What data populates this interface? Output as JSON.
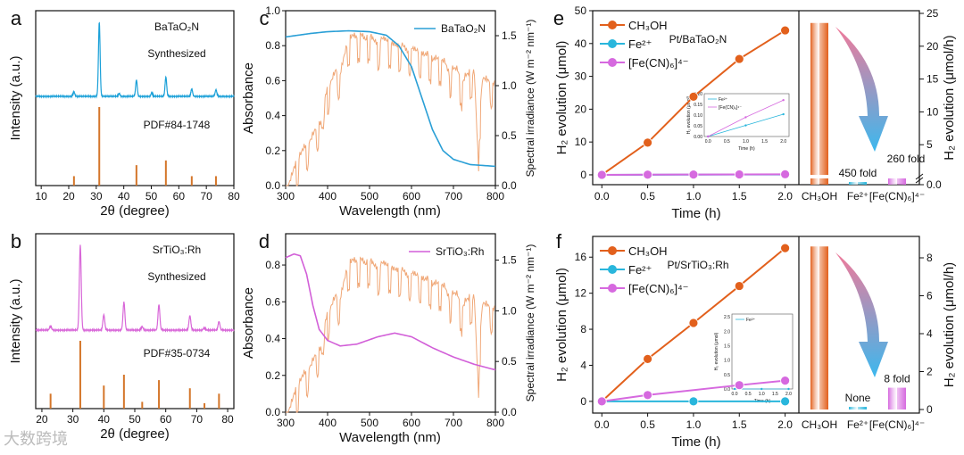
{
  "panel_labels": [
    "a",
    "b",
    "c",
    "d",
    "e",
    "f"
  ],
  "watermark": "大数跨境",
  "colors": {
    "xrd_blue": "#1aa0d8",
    "xrd_pink": "#d867d8",
    "stick": "#d4762a",
    "abs_blue": "#2a9fd6",
    "abs_pink": "#d25fd8",
    "solar": "#f0a878",
    "ch3oh": "#e2601c",
    "fe": "#29b6dc",
    "fecn": "#d669df"
  },
  "chart_data": [
    {
      "id": "a",
      "type": "line",
      "xlabel": "2θ (degree)",
      "ylabel": "Intensity (a.u.)",
      "xlim": [
        8,
        80
      ],
      "xticks": [
        "10",
        "20",
        "30",
        "40",
        "50",
        "60",
        "70",
        "80"
      ],
      "annotations": [
        "BaTaO₂N",
        "Synthesized",
        "PDF#84-1748"
      ],
      "peaks": [
        [
          21.9,
          0.06
        ],
        [
          31.1,
          1.0
        ],
        [
          38.3,
          0.04
        ],
        [
          44.6,
          0.22
        ],
        [
          50.2,
          0.05
        ],
        [
          55.3,
          0.26
        ],
        [
          64.7,
          0.1
        ],
        [
          73.5,
          0.09
        ]
      ],
      "sticks": [
        [
          21.9,
          0.12
        ],
        [
          31.1,
          1.0
        ],
        [
          44.6,
          0.26
        ],
        [
          55.3,
          0.32
        ],
        [
          64.7,
          0.12
        ],
        [
          73.5,
          0.12
        ]
      ]
    },
    {
      "id": "b",
      "type": "line",
      "xlabel": "2θ (degree)",
      "ylabel": "Intensity (a.u.)",
      "xlim": [
        18,
        82
      ],
      "xticks": [
        "20",
        "30",
        "40",
        "50",
        "60",
        "70",
        "80"
      ],
      "annotations": [
        "SrTiO₃:Rh",
        "Synthesized",
        "PDF#35-0734"
      ],
      "peaks": [
        [
          22.8,
          0.05
        ],
        [
          32.4,
          1.0
        ],
        [
          40.0,
          0.18
        ],
        [
          46.5,
          0.33
        ],
        [
          52.4,
          0.04
        ],
        [
          57.8,
          0.3
        ],
        [
          67.8,
          0.17
        ],
        [
          72.5,
          0.03
        ],
        [
          77.2,
          0.1
        ]
      ],
      "sticks": [
        [
          22.8,
          0.22
        ],
        [
          32.4,
          1.0
        ],
        [
          40.0,
          0.34
        ],
        [
          46.5,
          0.5
        ],
        [
          52.4,
          0.1
        ],
        [
          57.8,
          0.42
        ],
        [
          67.8,
          0.3
        ],
        [
          72.5,
          0.08
        ],
        [
          77.2,
          0.22
        ]
      ]
    },
    {
      "id": "c",
      "type": "line",
      "xlabel": "Wavelength (nm)",
      "ylabel": "Absorbance",
      "y2label": "Spectral irradiance (W m⁻² nm⁻¹)",
      "xlim": [
        300,
        800
      ],
      "ylim": [
        0,
        1.0
      ],
      "y2lim": [
        0,
        1.75
      ],
      "xticks": [
        "300",
        "400",
        "500",
        "600",
        "700",
        "800"
      ],
      "yticks": [
        "0.0",
        "0.2",
        "0.4",
        "0.6",
        "0.8",
        "1.0"
      ],
      "y2ticks": [
        "0.0",
        "0.5",
        "1.0",
        "1.5"
      ],
      "legend": "BaTaO₂N",
      "absorbance": [
        [
          300,
          0.85
        ],
        [
          330,
          0.86
        ],
        [
          360,
          0.87
        ],
        [
          400,
          0.88
        ],
        [
          450,
          0.885
        ],
        [
          500,
          0.88
        ],
        [
          540,
          0.86
        ],
        [
          570,
          0.8
        ],
        [
          600,
          0.68
        ],
        [
          625,
          0.5
        ],
        [
          650,
          0.32
        ],
        [
          675,
          0.2
        ],
        [
          700,
          0.15
        ],
        [
          740,
          0.12
        ],
        [
          800,
          0.11
        ]
      ]
    },
    {
      "id": "d",
      "type": "line",
      "xlabel": "Wavelength (nm)",
      "ylabel": "Absorbance",
      "y2label": "Spectral irradiance (W m⁻² nm⁻¹)",
      "xlim": [
        300,
        800
      ],
      "ylim": [
        0,
        0.97
      ],
      "y2lim": [
        0,
        1.76
      ],
      "xticks": [
        "300",
        "400",
        "500",
        "600",
        "700",
        "800"
      ],
      "yticks": [
        "0.0",
        "0.2",
        "0.4",
        "0.6",
        "0.8"
      ],
      "y2ticks": [
        "0.0",
        "0.5",
        "1.0",
        "1.5"
      ],
      "legend": "SrTiO₃:Rh",
      "absorbance": [
        [
          300,
          0.84
        ],
        [
          320,
          0.86
        ],
        [
          335,
          0.85
        ],
        [
          350,
          0.75
        ],
        [
          365,
          0.58
        ],
        [
          380,
          0.45
        ],
        [
          400,
          0.39
        ],
        [
          430,
          0.36
        ],
        [
          470,
          0.37
        ],
        [
          520,
          0.41
        ],
        [
          560,
          0.43
        ],
        [
          600,
          0.41
        ],
        [
          650,
          0.35
        ],
        [
          700,
          0.3
        ],
        [
          750,
          0.26
        ],
        [
          800,
          0.23
        ]
      ]
    },
    {
      "id": "e",
      "type": "line",
      "title": "Pt/BaTaO₂N",
      "xlabel": "Time (h)",
      "ylabel": "H₂ evolution (μmol)",
      "y2label": "H₂ evolution (μmol/h)",
      "xlim": [
        -0.1,
        2.15
      ],
      "ylim": [
        -3,
        50
      ],
      "xticks": [
        "0.0",
        "0.5",
        "1.0",
        "1.5",
        "2.0"
      ],
      "yticks": [
        "0",
        "10",
        "20",
        "30",
        "40",
        "50"
      ],
      "y2ticks": [
        "0.0",
        "5",
        "10",
        "15",
        "20",
        "25"
      ],
      "x": [
        0,
        0.5,
        1.0,
        1.5,
        2.0
      ],
      "series": [
        {
          "name": "CH₃OH",
          "values": [
            0,
            9.8,
            23.8,
            35.3,
            44.0
          ]
        },
        {
          "name": "Fe²⁺",
          "values": [
            0,
            0.03,
            0.05,
            0.08,
            0.1
          ]
        },
        {
          "name": "[Fe(CN)₆]⁴⁻",
          "values": [
            0,
            0.05,
            0.09,
            0.13,
            0.17
          ]
        }
      ],
      "bars": {
        "categories": [
          "CH₃OH",
          "Fe²⁺",
          "[Fe(CN)₆]⁴⁻"
        ],
        "values": [
          23.6,
          0.05,
          0.085
        ],
        "labels": [
          "",
          "450 fold",
          "260 fold"
        ],
        "axis_break": true
      },
      "inset": {
        "xlabel": "Time (h)",
        "ylabel": "H₂ evolution (μmol)",
        "yticks": [
          "0.00",
          "0.05",
          "0.10",
          "0.15",
          "0.20"
        ],
        "xticks": [
          "0.0",
          "0.5",
          "1.0",
          "1.5",
          "2.0"
        ],
        "legend": [
          "Fe²⁺",
          "[Fe(CN)₆]⁴⁻"
        ],
        "ylim": [
          0,
          0.2
        ],
        "x": [
          0,
          1,
          2
        ],
        "series": [
          [
            0,
            0.052,
            0.104
          ],
          [
            0,
            0.09,
            0.17
          ]
        ]
      }
    },
    {
      "id": "f",
      "type": "line",
      "title": "Pt/SrTiO₃:Rh",
      "xlabel": "Time (h)",
      "ylabel": "H₂ evolution (μmol)",
      "y2label": "H₂ evolution (μmol/h)",
      "xlim": [
        -0.1,
        2.15
      ],
      "ylim": [
        -1.3,
        18.3
      ],
      "xticks": [
        "0.0",
        "0.5",
        "1.0",
        "1.5",
        "2.0"
      ],
      "yticks": [
        "0",
        "4",
        "8",
        "12",
        "16"
      ],
      "y2ticks": [
        "0",
        "2",
        "4",
        "6",
        "8"
      ],
      "x": [
        0,
        0.5,
        1.0,
        1.5,
        2.0
      ],
      "series": [
        {
          "name": "CH₃OH",
          "values": [
            0,
            4.7,
            8.7,
            12.8,
            17.0
          ]
        },
        {
          "name": "Fe²⁺",
          "values": [
            0,
            null,
            0,
            null,
            0
          ]
        },
        {
          "name": "[Fe(CN)₆]⁴⁻",
          "values": [
            0,
            0.7,
            null,
            1.8,
            2.3
          ]
        }
      ],
      "bars": {
        "categories": [
          "CH₃OH",
          "Fe²⁺",
          "[Fe(CN)₆]⁴⁻"
        ],
        "values": [
          8.6,
          0,
          1.15
        ],
        "labels": [
          "",
          "None",
          "8 fold"
        ],
        "axis_break": false
      },
      "inset": {
        "xlabel": "Time (h)",
        "ylabel": "H₂ evolution (μmol)",
        "yticks": [
          "0.0",
          "0.5",
          "1.0",
          "1.5",
          "2.0",
          "2.5"
        ],
        "xticks": [
          "0.0",
          "0.5",
          "1.0",
          "1.5",
          "2.0"
        ],
        "legend": [
          "Fe²⁺"
        ],
        "ylim": [
          0,
          2.6
        ],
        "x": [
          0,
          1,
          2
        ],
        "series": [
          [
            0,
            0,
            0
          ]
        ]
      }
    }
  ],
  "solar_spectrum": [
    [
      300,
      0
    ],
    [
      310,
      0.08
    ],
    [
      320,
      0.22
    ],
    [
      330,
      0.3
    ],
    [
      340,
      0.4
    ],
    [
      350,
      0.45
    ],
    [
      360,
      0.5
    ],
    [
      370,
      0.6
    ],
    [
      380,
      0.68
    ],
    [
      390,
      0.6
    ],
    [
      395,
      0.95
    ],
    [
      400,
      1.0
    ],
    [
      410,
      1.1
    ],
    [
      420,
      1.2
    ],
    [
      430,
      1.15
    ],
    [
      440,
      1.35
    ],
    [
      450,
      1.5
    ],
    [
      460,
      1.55
    ],
    [
      470,
      1.52
    ],
    [
      480,
      1.56
    ],
    [
      490,
      1.5
    ],
    [
      500,
      1.55
    ],
    [
      510,
      1.5
    ],
    [
      520,
      1.45
    ],
    [
      530,
      1.52
    ],
    [
      540,
      1.5
    ],
    [
      550,
      1.47
    ],
    [
      560,
      1.45
    ],
    [
      570,
      1.44
    ],
    [
      580,
      1.45
    ],
    [
      590,
      1.38
    ],
    [
      600,
      1.42
    ],
    [
      610,
      1.4
    ],
    [
      620,
      1.38
    ],
    [
      630,
      1.35
    ],
    [
      640,
      1.36
    ],
    [
      650,
      1.3
    ],
    [
      660,
      1.32
    ],
    [
      670,
      1.3
    ],
    [
      680,
      1.28
    ],
    [
      690,
      1.15
    ],
    [
      700,
      1.22
    ],
    [
      710,
      1.2
    ],
    [
      720,
      1.05
    ],
    [
      730,
      1.15
    ],
    [
      740,
      1.17
    ],
    [
      750,
      1.16
    ],
    [
      760,
      0.2
    ],
    [
      765,
      0.9
    ],
    [
      770,
      1.12
    ],
    [
      780,
      1.1
    ],
    [
      790,
      1.08
    ],
    [
      800,
      1.05
    ]
  ]
}
